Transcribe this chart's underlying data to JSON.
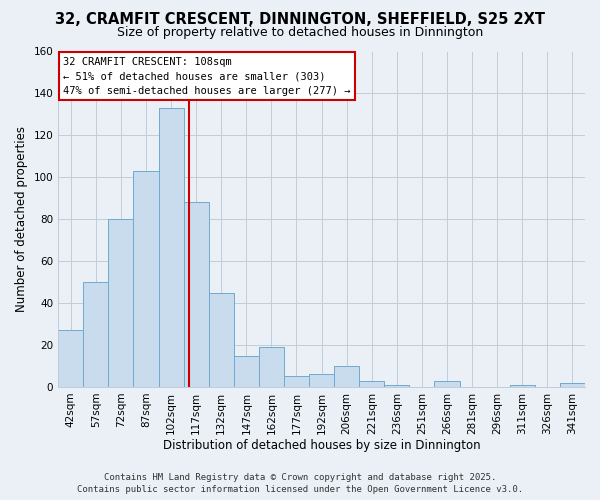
{
  "title": "32, CRAMFIT CRESCENT, DINNINGTON, SHEFFIELD, S25 2XT",
  "subtitle": "Size of property relative to detached houses in Dinnington",
  "xlabel": "Distribution of detached houses by size in Dinnington",
  "ylabel": "Number of detached properties",
  "bar_labels": [
    "42sqm",
    "57sqm",
    "72sqm",
    "87sqm",
    "102sqm",
    "117sqm",
    "132sqm",
    "147sqm",
    "162sqm",
    "177sqm",
    "192sqm",
    "206sqm",
    "221sqm",
    "236sqm",
    "251sqm",
    "266sqm",
    "281sqm",
    "296sqm",
    "311sqm",
    "326sqm",
    "341sqm"
  ],
  "bar_values": [
    27,
    50,
    80,
    103,
    133,
    88,
    45,
    15,
    19,
    5,
    6,
    10,
    3,
    1,
    0,
    3,
    0,
    0,
    1,
    0,
    2
  ],
  "bar_color": "#c8dcee",
  "bar_edge_color": "#6faad0",
  "ylim": [
    0,
    160
  ],
  "yticks": [
    0,
    20,
    40,
    60,
    80,
    100,
    120,
    140,
    160
  ],
  "vline_x": 4.72,
  "vline_color": "#cc0000",
  "annotation_title": "32 CRAMFIT CRESCENT: 108sqm",
  "annotation_line1": "← 51% of detached houses are smaller (303)",
  "annotation_line2": "47% of semi-detached houses are larger (277) →",
  "footer_line1": "Contains HM Land Registry data © Crown copyright and database right 2025.",
  "footer_line2": "Contains public sector information licensed under the Open Government Licence v3.0.",
  "bg_color": "#eaf0f6",
  "plot_bg_color": "#eaf0f6",
  "grid_color": "#c0ccd8",
  "title_fontsize": 10.5,
  "subtitle_fontsize": 9,
  "xlabel_fontsize": 8.5,
  "ylabel_fontsize": 8.5,
  "tick_fontsize": 7.5,
  "footer_fontsize": 6.5
}
